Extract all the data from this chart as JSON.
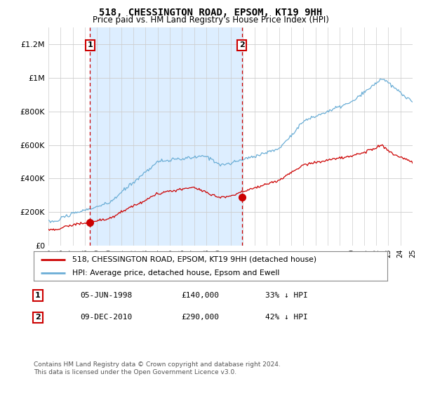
{
  "title": "518, CHESSINGTON ROAD, EPSOM, KT19 9HH",
  "subtitle": "Price paid vs. HM Land Registry's House Price Index (HPI)",
  "legend_line1": "518, CHESSINGTON ROAD, EPSOM, KT19 9HH (detached house)",
  "legend_line2": "HPI: Average price, detached house, Epsom and Ewell",
  "annotation1_label": "1",
  "annotation1_date": "05-JUN-1998",
  "annotation1_price": "£140,000",
  "annotation1_hpi": "33% ↓ HPI",
  "annotation1_year": 1998.43,
  "annotation1_value": 140000,
  "annotation2_label": "2",
  "annotation2_date": "09-DEC-2010",
  "annotation2_price": "£290,000",
  "annotation2_hpi": "42% ↓ HPI",
  "annotation2_year": 2010.93,
  "annotation2_value": 290000,
  "hpi_color": "#6baed6",
  "price_color": "#cc0000",
  "vline_color": "#cc0000",
  "shade_color": "#ddeeff",
  "background_color": "#ffffff",
  "grid_color": "#cccccc",
  "ylim": [
    0,
    1300000
  ],
  "xlim": [
    1995,
    2025
  ],
  "yticks": [
    0,
    200000,
    400000,
    600000,
    800000,
    1000000,
    1200000
  ],
  "ytick_labels": [
    "£0",
    "£200K",
    "£400K",
    "£600K",
    "£800K",
    "£1M",
    "£1.2M"
  ],
  "footer": "Contains HM Land Registry data © Crown copyright and database right 2024.\nThis data is licensed under the Open Government Licence v3.0."
}
